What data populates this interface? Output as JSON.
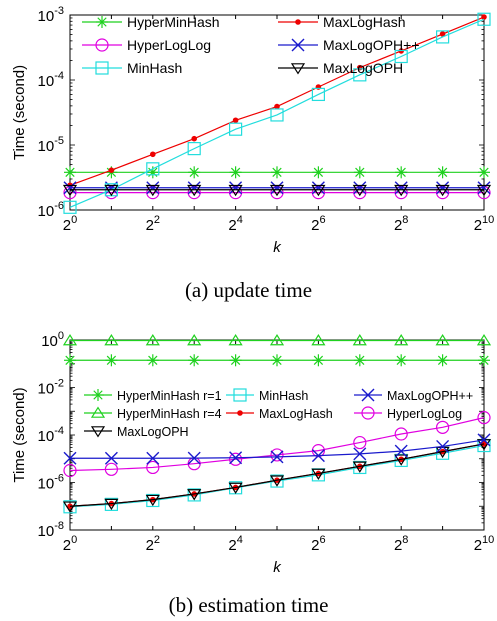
{
  "chart_data": [
    {
      "type": "line",
      "caption": "(a)  update time",
      "xlabel": "k",
      "ylabel": "Time (second)",
      "x": [
        0,
        1,
        2,
        3,
        4,
        5,
        6,
        7,
        8,
        9,
        10
      ],
      "x_tick_exponents": [
        "0",
        "2",
        "4",
        "6",
        "8",
        "10"
      ],
      "y_scale": "log",
      "ylim": [
        1e-06,
        0.001
      ],
      "y_tick_exponents": [
        "-6",
        "-5",
        "-4",
        "-3"
      ],
      "legend_position": "top-left",
      "legend_columns": 2,
      "series": [
        {
          "name": "HyperMinHash",
          "color": "#1fd11f",
          "marker": "asterisk",
          "values": [
            3.8e-06,
            3.8e-06,
            3.8e-06,
            3.8e-06,
            3.8e-06,
            3.8e-06,
            3.8e-06,
            3.8e-06,
            3.8e-06,
            3.8e-06,
            3.8e-06
          ]
        },
        {
          "name": "MaxLogHash",
          "color": "#ee0000",
          "marker": "dot",
          "values": [
            2.4e-06,
            4.1e-06,
            7.2e-06,
            1.25e-05,
            2.4e-05,
            3.9e-05,
            7.8e-05,
            0.000155,
            0.00028,
            0.00051,
            0.00093
          ]
        },
        {
          "name": "HyperLogLog",
          "color": "#e000e0",
          "marker": "circle",
          "values": [
            1.85e-06,
            1.85e-06,
            1.85e-06,
            1.85e-06,
            1.85e-06,
            1.85e-06,
            1.85e-06,
            1.85e-06,
            1.85e-06,
            1.85e-06,
            1.85e-06
          ]
        },
        {
          "name": "MaxLogOPH++",
          "color": "#1a1acc",
          "marker": "x",
          "values": [
            2.2e-06,
            2.2e-06,
            2.2e-06,
            2.2e-06,
            2.2e-06,
            2.2e-06,
            2.2e-06,
            2.2e-06,
            2.2e-06,
            2.2e-06,
            2.2e-06
          ]
        },
        {
          "name": "MinHash",
          "color": "#22dddd",
          "marker": "square",
          "values": [
            1.1e-06,
            2.05e-06,
            4.3e-06,
            8.8e-06,
            1.75e-05,
            2.9e-05,
            6e-05,
            0.00012,
            0.00023,
            0.00046,
            0.00086
          ]
        },
        {
          "name": "MaxLogOPH",
          "color": "#000000",
          "marker": "triangle-down",
          "values": [
            2.05e-06,
            2.05e-06,
            2.05e-06,
            2.05e-06,
            2.05e-06,
            2.05e-06,
            2.05e-06,
            2.05e-06,
            2.05e-06,
            2.05e-06,
            2.05e-06
          ]
        }
      ]
    },
    {
      "type": "line",
      "caption": "(b)  estimation time",
      "xlabel": "k",
      "ylabel": "Time (second)",
      "x": [
        0,
        1,
        2,
        3,
        4,
        5,
        6,
        7,
        8,
        9,
        10
      ],
      "x_tick_exponents": [
        "0",
        "2",
        "4",
        "6",
        "8",
        "10"
      ],
      "y_scale": "log",
      "ylim": [
        1e-08,
        1
      ],
      "y_tick_exponents": [
        "-8",
        "-6",
        "-4",
        "-2",
        "0"
      ],
      "legend_position": "center",
      "legend_columns": 3,
      "series": [
        {
          "name": "HyperMinHash r=1",
          "color": "#1fd11f",
          "marker": "asterisk",
          "values": [
            0.14,
            0.14,
            0.14,
            0.14,
            0.14,
            0.14,
            0.14,
            0.14,
            0.14,
            0.14,
            0.14
          ]
        },
        {
          "name": "HyperMinHash r=4",
          "color": "#1fd11f",
          "marker": "triangle-up",
          "values": [
            0.95,
            0.95,
            0.95,
            0.95,
            0.95,
            0.95,
            0.95,
            0.95,
            0.95,
            0.95,
            0.95
          ]
        },
        {
          "name": "HyperLogLog",
          "color": "#e000e0",
          "marker": "circle",
          "values": [
            3.2e-06,
            3.6e-06,
            4.3e-06,
            6.2e-06,
            9.5e-06,
            1.45e-05,
            2.2e-05,
            4.8e-05,
            0.00011,
            0.00021,
            0.00054
          ]
        },
        {
          "name": "MinHash",
          "color": "#22dddd",
          "marker": "square",
          "values": [
            9.5e-08,
            1.2e-07,
            1.75e-07,
            3e-07,
            6e-07,
            1.15e-06,
            2.1e-06,
            4.3e-06,
            8.5e-06,
            1.7e-05,
            3.6e-05
          ]
        },
        {
          "name": "MaxLogHash",
          "color": "#ee0000",
          "marker": "dot",
          "values": [
            1e-07,
            1.3e-07,
            1.9e-07,
            3.3e-07,
            6.2e-07,
            1.25e-06,
            2.4e-06,
            4.8e-06,
            9.5e-06,
            2e-05,
            4.2e-05
          ]
        },
        {
          "name": "MaxLogOPH",
          "color": "#000000",
          "marker": "triangle-down",
          "values": [
            1e-07,
            1.3e-07,
            1.9e-07,
            3.3e-07,
            6.2e-07,
            1.25e-06,
            2.4e-06,
            4.8e-06,
            9.5e-06,
            2e-05,
            4.2e-05
          ]
        },
        {
          "name": "MaxLogOPH++",
          "color": "#1a1acc",
          "marker": "x",
          "values": [
            1.05e-05,
            1.05e-05,
            1.05e-05,
            1.06e-05,
            1.1e-05,
            1.2e-05,
            1.35e-05,
            1.6e-05,
            2.1e-05,
            3.3e-05,
            6.2e-05
          ]
        }
      ]
    }
  ]
}
